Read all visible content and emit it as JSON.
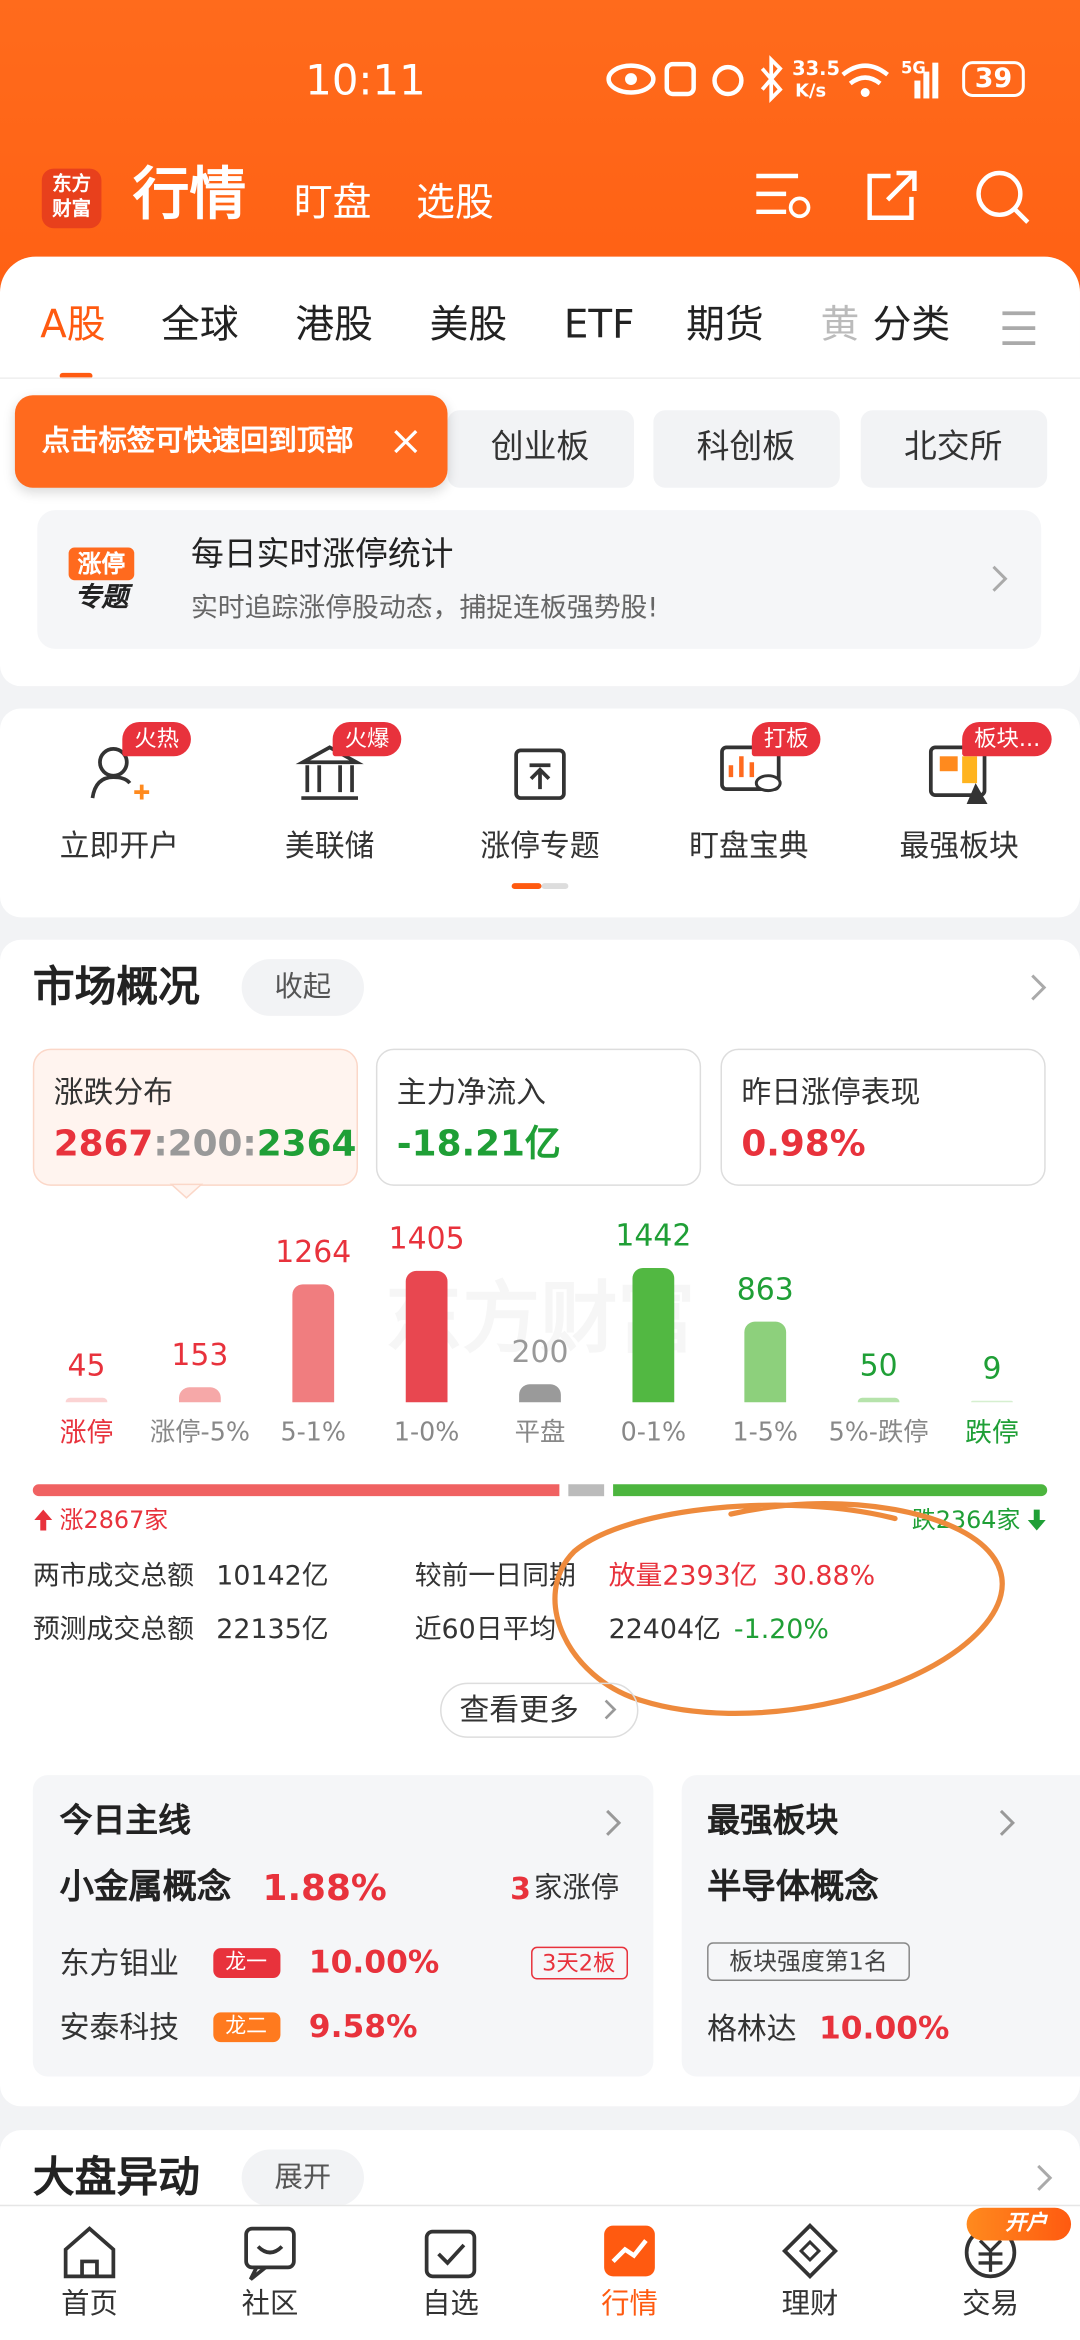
{
  "status_bar": {
    "time": "10:11",
    "speed": "33.5",
    "speed_unit": "K/s",
    "network": "5G",
    "battery": "39"
  },
  "header": {
    "logo": [
      "东方",
      "财富"
    ],
    "tabs": [
      "行情",
      "盯盘",
      "选股"
    ]
  },
  "market_tabs": [
    "A股",
    "全球",
    "港股",
    "美股",
    "ETF",
    "期货",
    "黄",
    "分类"
  ],
  "tooltip": "点击标签可快速回到顶部",
  "sub_tabs": [
    "创业板",
    "科创板",
    "北交所"
  ],
  "banner": {
    "badge": [
      "涨停",
      "专题"
    ],
    "title": "每日实时涨停统计",
    "subtitle": "实时追踪涨停股动态，捕捉连板强势股!"
  },
  "shortcuts": [
    {
      "label": "立即开户",
      "badge": "火热"
    },
    {
      "label": "美联储",
      "badge": "火爆"
    },
    {
      "label": "涨停专题"
    },
    {
      "label": "盯盘宝典",
      "badge": "打板"
    },
    {
      "label": "最强板块",
      "badge": "板块..."
    }
  ],
  "overview": {
    "title": "市场概况",
    "toggle": "收起",
    "cards": [
      {
        "title": "涨跌分布",
        "parts": [
          "2867",
          ":",
          "200",
          ":",
          "2364"
        ]
      },
      {
        "title": "主力净流入",
        "value": "-18.21亿"
      },
      {
        "title": "昨日涨停表现",
        "value": "0.98%"
      }
    ],
    "watermark": "东方财富",
    "distribution": {
      "bars": [
        {
          "label": "涨停",
          "value": 45,
          "color": "#fbd3d3",
          "text_color": "#e8323c"
        },
        {
          "label": "涨停-5%",
          "value": 153,
          "color": "#f6a8a8",
          "text_color": "#e8323c"
        },
        {
          "label": "5-1%",
          "value": 1264,
          "color": "#f07d7f",
          "text_color": "#e8323c"
        },
        {
          "label": "1-0%",
          "value": 1405,
          "color": "#e84750",
          "text_color": "#e8323c"
        },
        {
          "label": "平盘",
          "value": 200,
          "color": "#9a9a9a",
          "text_color": "#999999"
        },
        {
          "label": "0-1%",
          "value": 1442,
          "color": "#52b842",
          "text_color": "#1f9f36"
        },
        {
          "label": "1-5%",
          "value": 863,
          "color": "#8dd07c",
          "text_color": "#1f9f36"
        },
        {
          "label": "5%-跌停",
          "value": 50,
          "color": "#b6e3ab",
          "text_color": "#1f9f36"
        },
        {
          "label": "跌停",
          "value": 9,
          "color": "#d6efcf",
          "text_color": "#1f9f36"
        }
      ]
    },
    "ratio": {
      "up": 2867,
      "flat": 200,
      "down": 2364,
      "up_label": "涨2867家",
      "down_label": "跌2364家"
    },
    "stats": [
      [
        "两市成交总额",
        "10142亿"
      ],
      [
        "预测成交总额",
        "22135亿"
      ]
    ],
    "compare": [
      [
        "较前一日同期",
        "放量2393亿",
        "30.88%"
      ],
      [
        "近60日平均",
        "22404亿",
        "-1.20%"
      ]
    ],
    "more": "查看更多"
  },
  "mainline": {
    "title": "今日主线",
    "concept": "小金属概念",
    "change": "1.88%",
    "limit_count": "3",
    "limit_text": "家涨停",
    "stocks": [
      {
        "name": "东方钼业",
        "tag": "龙一",
        "change": "10.00%",
        "streak": "3天2板"
      },
      {
        "name": "安泰科技",
        "tag": "龙二",
        "change": "9.58%"
      }
    ]
  },
  "strongest": {
    "title": "最强板块",
    "concept": "半导体概念",
    "rank": "板块强度第1名",
    "stock": "格林达",
    "change": "10.00%"
  },
  "movement": {
    "title": "大盘异动",
    "toggle": "展开"
  },
  "bottom_nav": {
    "items": [
      "首页",
      "社区",
      "自选",
      "行情",
      "理财",
      "交易"
    ],
    "badge": "开户"
  }
}
